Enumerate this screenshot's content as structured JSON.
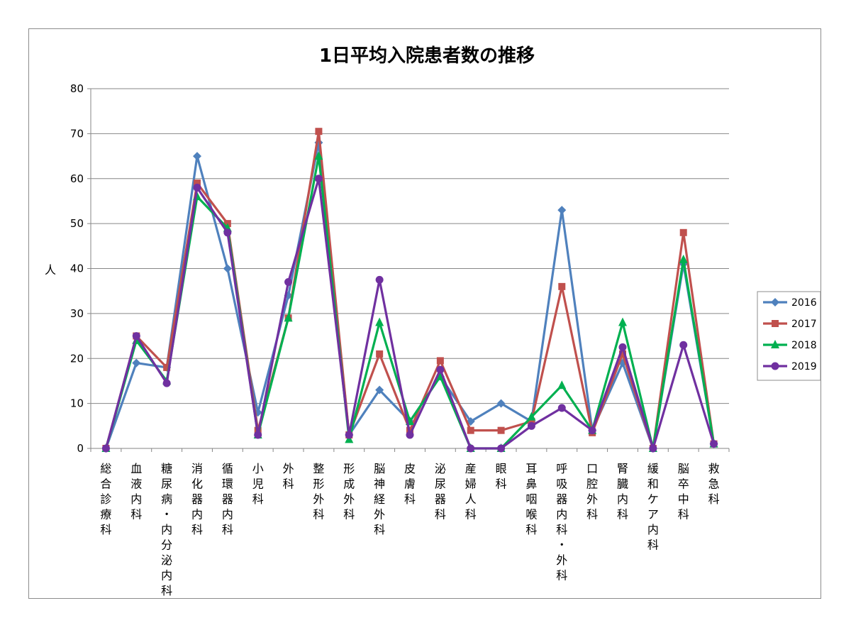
{
  "chart_data": {
    "type": "line",
    "title": "1日平均入院患者数の推移",
    "ylabel": "人",
    "xlabel": "",
    "ylim": [
      0,
      80
    ],
    "yticks": [
      0,
      10,
      20,
      30,
      40,
      50,
      60,
      70,
      80
    ],
    "grid": true,
    "legend_position": "right",
    "categories": [
      "総合診療科",
      "血液内科",
      "糖尿病・内分泌内科",
      "消化器内科",
      "循環器内科",
      "小児科",
      "外科",
      "整形外科",
      "形成外科",
      "脳神経外科",
      "皮膚科",
      "泌尿器科",
      "産婦人科",
      "眼科",
      "耳鼻咽喉科",
      "呼吸器内科・外科",
      "口腔外科",
      "腎臓内科",
      "緩和ケア内科",
      "脳卒中科",
      "救急科"
    ],
    "series": [
      {
        "name": "2016",
        "color": "#4f81bd",
        "marker": "diamond",
        "values": [
          0,
          19,
          18,
          65,
          40,
          8,
          34,
          68,
          3,
          13,
          6,
          16,
          6,
          10,
          6,
          53,
          4,
          19,
          0,
          41,
          1
        ]
      },
      {
        "name": "2017",
        "color": "#c0504d",
        "marker": "square",
        "values": [
          0,
          25,
          18,
          59,
          50,
          4,
          29,
          70.5,
          3,
          21,
          4,
          19.5,
          4,
          4,
          6,
          36,
          3.5,
          21,
          0,
          48,
          1
        ]
      },
      {
        "name": "2018",
        "color": "#00b050",
        "marker": "triangle",
        "values": [
          0,
          24,
          15,
          56,
          49,
          3,
          29,
          65,
          2,
          28,
          6,
          16,
          0,
          0,
          7,
          14,
          4,
          28,
          0,
          42,
          1
        ]
      },
      {
        "name": "2019",
        "color": "#7030a0",
        "marker": "circle",
        "values": [
          0,
          25,
          14.5,
          58,
          48,
          3,
          37,
          60,
          3,
          37.5,
          3,
          17.5,
          0,
          0,
          5,
          9,
          4,
          22.5,
          0,
          23,
          1
        ]
      }
    ]
  }
}
